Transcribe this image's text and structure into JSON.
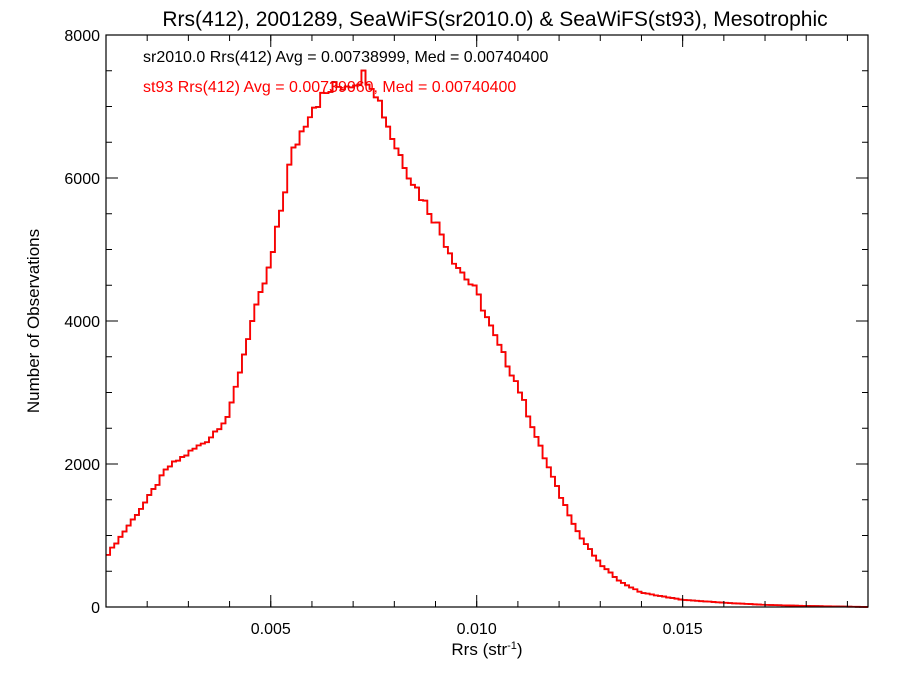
{
  "chart_data": {
    "type": "line",
    "title": "Rrs(412), 2001289, SeaWiFS(sr2010.0) & SeaWiFS(st93), Mesotrophic",
    "xlabel_main": "Rrs (str",
    "xlabel_sup": "-1",
    "xlabel_end": ")",
    "ylabel": "Number of Observations",
    "xlim": [
      0.001,
      0.0195
    ],
    "ylim": [
      0,
      8000
    ],
    "x_ticks": [
      {
        "value": 0.005,
        "label": "0.005"
      },
      {
        "value": 0.01,
        "label": "0.010"
      },
      {
        "value": 0.015,
        "label": "0.015"
      }
    ],
    "x_minor_step": 0.001,
    "y_ticks": [
      {
        "value": 0,
        "label": "0"
      },
      {
        "value": 2000,
        "label": "2000"
      },
      {
        "value": 4000,
        "label": "4000"
      },
      {
        "value": 6000,
        "label": "6000"
      },
      {
        "value": 8000,
        "label": "8000"
      }
    ],
    "y_minor_step": 500,
    "grid": false,
    "annotations": [
      {
        "text": "sr2010.0 Rrs(412) Avg = 0.00738999, Med = 0.00740400",
        "color": "#000000"
      },
      {
        "text": "st93 Rrs(412) Avg = 0.00739060, Med = 0.00740400",
        "color": "#ff0000"
      }
    ],
    "bin_width": 0.0001,
    "series": [
      {
        "color": "#000000",
        "x": [
          0.001,
          0.0015,
          0.002,
          0.0025,
          0.003,
          0.0035,
          0.004,
          0.0045,
          0.005,
          0.0055,
          0.006,
          0.0065,
          0.007,
          0.0073,
          0.0075,
          0.008,
          0.0085,
          0.009,
          0.0095,
          0.01,
          0.0105,
          0.011,
          0.0115,
          0.012,
          0.0125,
          0.013,
          0.0135,
          0.014,
          0.015,
          0.016,
          0.017,
          0.018,
          0.019,
          0.0195
        ],
        "y": [
          700,
          1100,
          1500,
          1950,
          2150,
          2350,
          2700,
          3900,
          4800,
          6300,
          7000,
          7250,
          7350,
          7450,
          7300,
          6500,
          5900,
          5400,
          4800,
          4400,
          3700,
          3100,
          2300,
          1600,
          1000,
          600,
          350,
          200,
          100,
          60,
          30,
          15,
          5,
          0
        ]
      },
      {
        "color": "#ff0000",
        "x": [
          0.001,
          0.0015,
          0.002,
          0.0025,
          0.003,
          0.0035,
          0.004,
          0.0045,
          0.005,
          0.0055,
          0.006,
          0.0065,
          0.007,
          0.0073,
          0.0075,
          0.008,
          0.0085,
          0.009,
          0.0095,
          0.01,
          0.0105,
          0.011,
          0.0115,
          0.012,
          0.0125,
          0.013,
          0.0135,
          0.014,
          0.015,
          0.016,
          0.017,
          0.018,
          0.019,
          0.0195
        ],
        "y": [
          700,
          1100,
          1500,
          1950,
          2150,
          2350,
          2700,
          3900,
          4800,
          6300,
          7000,
          7250,
          7350,
          7450,
          7300,
          6500,
          5900,
          5400,
          4800,
          4400,
          3700,
          3100,
          2300,
          1600,
          1000,
          600,
          350,
          200,
          100,
          60,
          30,
          15,
          5,
          0
        ]
      }
    ]
  }
}
